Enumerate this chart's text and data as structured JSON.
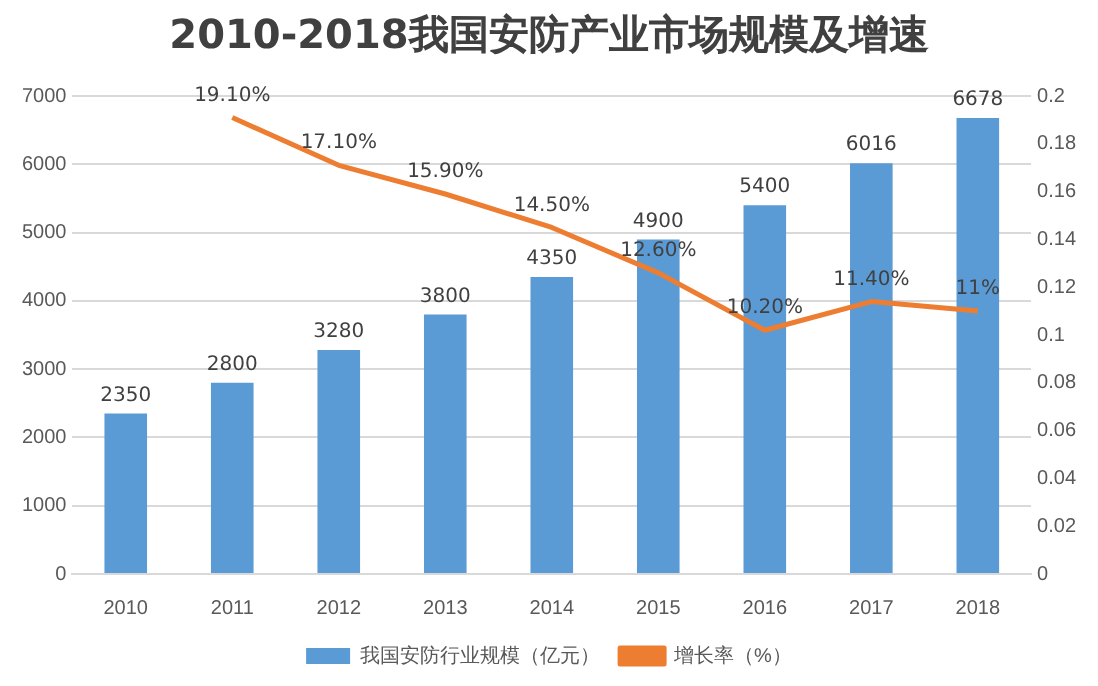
{
  "chart_data": {
    "type": "bar",
    "title": "2010-2018我国安防产业市场规模及增速",
    "categories": [
      "2010",
      "2011",
      "2012",
      "2013",
      "2014",
      "2015",
      "2016",
      "2017",
      "2018"
    ],
    "series": [
      {
        "name": "我国安防行业规模（亿元）",
        "color": "#5b9bd5",
        "values": [
          2350,
          2800,
          3280,
          3800,
          4350,
          4900,
          5400,
          6016,
          6678
        ],
        "value_labels": [
          "2350",
          "2800",
          "3280",
          "3800",
          "4350",
          "4900",
          "5400",
          "6016",
          "6678"
        ]
      },
      {
        "name": "增长率（%）",
        "type": "line",
        "axis": "y2",
        "color": "#ed7d31",
        "values": [
          null,
          0.191,
          0.171,
          0.159,
          0.145,
          0.126,
          0.102,
          0.114,
          0.11
        ],
        "value_labels": [
          null,
          "19.10%",
          "17.10%",
          "15.90%",
          "14.50%",
          "12.60%",
          "10.20%",
          "11.40%",
          "11%"
        ]
      }
    ],
    "ylim": [
      0,
      7000
    ],
    "yticks": [
      0,
      1000,
      2000,
      3000,
      4000,
      5000,
      6000,
      7000
    ],
    "y2lim": [
      0,
      0.2
    ],
    "y2ticks": [
      0,
      0.02,
      0.04,
      0.06,
      0.08,
      0.1,
      0.12,
      0.14,
      0.16,
      0.18,
      0.2
    ],
    "grid": "y",
    "legend": "bottom",
    "marker": "none"
  }
}
